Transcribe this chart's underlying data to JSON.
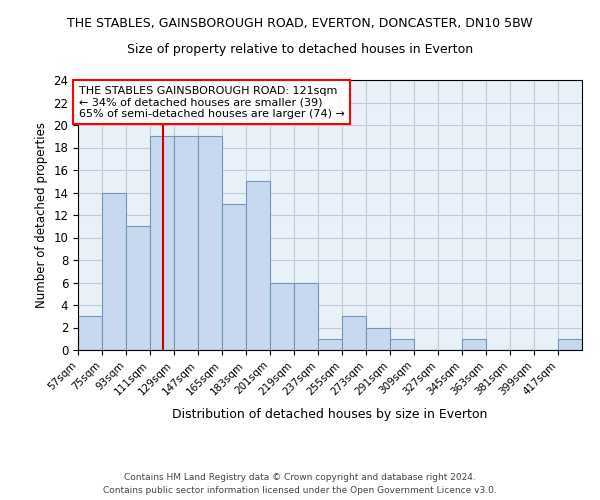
{
  "title_line1": "THE STABLES, GAINSBOROUGH ROAD, EVERTON, DONCASTER, DN10 5BW",
  "title_line2": "Size of property relative to detached houses in Everton",
  "xlabel": "Distribution of detached houses by size in Everton",
  "ylabel": "Number of detached properties",
  "footer_line1": "Contains HM Land Registry data © Crown copyright and database right 2024.",
  "footer_line2": "Contains public sector information licensed under the Open Government Licence v3.0.",
  "bins": [
    57,
    75,
    93,
    111,
    129,
    147,
    165,
    183,
    201,
    219,
    237,
    255,
    273,
    291,
    309,
    327,
    345,
    363,
    381,
    399,
    417
  ],
  "counts": [
    3,
    14,
    11,
    19,
    19,
    19,
    13,
    15,
    6,
    6,
    1,
    3,
    2,
    1,
    0,
    0,
    1,
    0,
    0,
    0,
    1
  ],
  "bar_color": "#c8d8ee",
  "bar_edge_color": "#7098b8",
  "red_line_x": 121,
  "ylim": [
    0,
    24
  ],
  "yticks": [
    0,
    2,
    4,
    6,
    8,
    10,
    12,
    14,
    16,
    18,
    20,
    22,
    24
  ],
  "annotation_text": "THE STABLES GAINSBOROUGH ROAD: 121sqm\n← 34% of detached houses are smaller (39)\n65% of semi-detached houses are larger (74) →",
  "bg_color": "#e8f0f8",
  "grid_color": "#c0ccd8",
  "bin_width": 18
}
